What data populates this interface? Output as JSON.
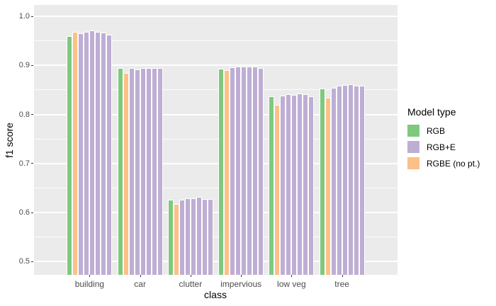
{
  "figure": {
    "y_axis": {
      "title": "f1 score",
      "tick_labels": [
        "1.0",
        "0.9",
        "0.8",
        "0.7",
        "0.6",
        "0.5"
      ]
    },
    "x_axis": {
      "title": "class",
      "tick_labels": [
        "building",
        "car",
        "clutter",
        "impervious",
        "low veg",
        "tree"
      ]
    },
    "legend": {
      "title": "Model type",
      "items": [
        {
          "label": "RGB",
          "color": "#7FC97F"
        },
        {
          "label": "RGB+E",
          "color": "#BEAED4"
        },
        {
          "label": "RGBE (no pt.)",
          "color": "#FDC086"
        }
      ]
    },
    "colors": {
      "panel_bg": "#EBEBEB",
      "gridline": "#FFFFFF",
      "axis_text": "#4D4D4D",
      "title_text": "#000000"
    }
  },
  "chart_data": {
    "type": "bar",
    "title": "",
    "xlabel": "class",
    "ylabel": "f1 score",
    "ylim": [
      0.5,
      1.0
    ],
    "y_major_ticks": [
      1.0,
      0.9,
      0.8,
      0.7,
      0.6,
      0.5
    ],
    "grid": true,
    "legend_position": "right",
    "categories": [
      "building",
      "car",
      "clutter",
      "impervious",
      "low veg",
      "tree"
    ],
    "bar_order_within_group": [
      "RGB",
      "RGBE (no pt.)",
      "RGB+E run 1",
      "RGB+E run 2",
      "RGB+E run 3",
      "RGB+E run 4",
      "RGB+E run 5",
      "RGB+E run 6"
    ],
    "series": [
      {
        "name": "RGB",
        "color": "#7FC97F",
        "values": [
          0.959,
          0.895,
          0.627,
          0.893,
          0.837,
          0.853
        ]
      },
      {
        "name": "RGBE (no pt.)",
        "color": "#FDC086",
        "values": [
          0.968,
          0.884,
          0.617,
          0.891,
          0.82,
          0.834
        ]
      },
      {
        "name": "RGB+E",
        "color": "#BEAED4",
        "runs_by_category": {
          "building": [
            0.966,
            0.969,
            0.971,
            0.969,
            0.967,
            0.963
          ],
          "car": [
            0.895,
            0.892,
            0.894,
            0.894,
            0.894,
            0.894
          ],
          "clutter": [
            0.627,
            0.629,
            0.629,
            0.632,
            0.628,
            0.628
          ],
          "impervious": [
            0.896,
            0.898,
            0.898,
            0.898,
            0.897,
            0.895
          ],
          "low veg": [
            0.838,
            0.842,
            0.84,
            0.843,
            0.841,
            0.837
          ],
          "tree": [
            0.854,
            0.858,
            0.86,
            0.861,
            0.859,
            0.858
          ]
        }
      }
    ]
  }
}
